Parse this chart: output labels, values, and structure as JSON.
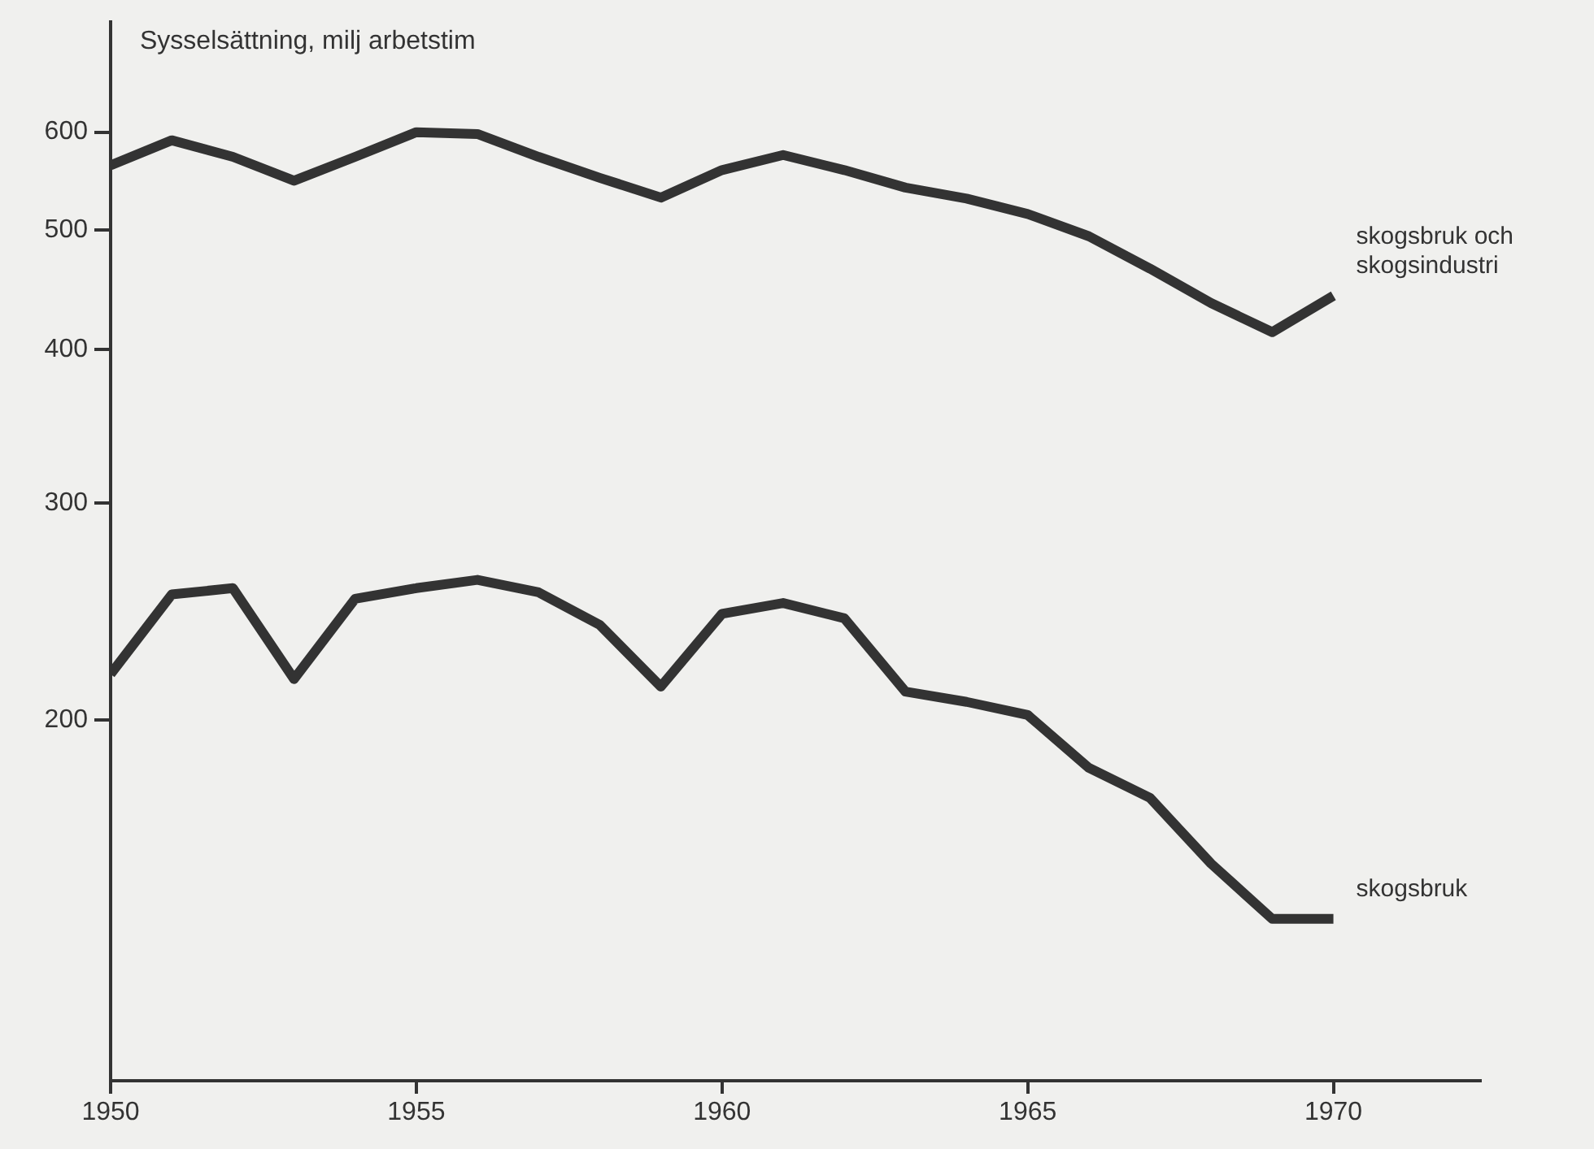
{
  "chart_data": {
    "type": "line",
    "ylabel": "Sysselsättning, milj arbetstim",
    "log": "y",
    "xlim": [
      1950,
      1972.4
    ],
    "ylim": [
      102,
      737
    ],
    "xticks": [
      1950,
      1955,
      1960,
      1965,
      1970
    ],
    "yticks": [
      200,
      300,
      400,
      500,
      600
    ],
    "grid": false,
    "legend": false,
    "marker": "none",
    "line_style": "solid",
    "x": [
      1950,
      1951,
      1952,
      1953,
      1954,
      1955,
      1956,
      1957,
      1958,
      1959,
      1960,
      1961,
      1962,
      1963,
      1964,
      1965,
      1966,
      1967,
      1968,
      1969,
      1970
    ],
    "series": [
      {
        "name": "skogsbruk och skogsindustri",
        "color": "#333333",
        "values": [
          564,
          591,
          573,
          548,
          573,
          600,
          598,
          573,
          551,
          531,
          559,
          575,
          559,
          541,
          530,
          515,
          494,
          465,
          436,
          413,
          442
        ]
      },
      {
        "name": "skogsbruk",
        "color": "#333333",
        "values": [
          218,
          253,
          256,
          216,
          251,
          256,
          260,
          254,
          239,
          213,
          244,
          249,
          242,
          211,
          207,
          202,
          183,
          173,
          153,
          138,
          138
        ]
      }
    ]
  }
}
